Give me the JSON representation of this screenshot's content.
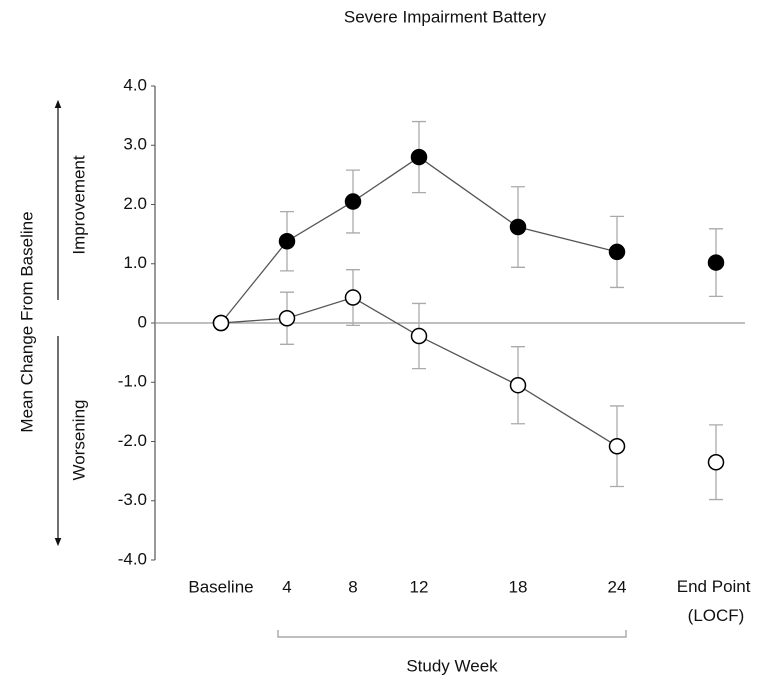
{
  "chart_data": {
    "type": "line",
    "title": "Severe Impairment Battery",
    "y_label": "Mean Change From Baseline",
    "y_label_upper": "Improvement",
    "y_label_lower": "Worsening",
    "x_label": "Study Week",
    "x": [
      0,
      4,
      8,
      12,
      18,
      24,
      30
    ],
    "xlim": [
      -4,
      32
    ],
    "xticks": [
      {
        "value": 0,
        "label": "Baseline"
      },
      4,
      8,
      12,
      18,
      24,
      {
        "value": 30,
        "label": "End Point (LOCF)"
      }
    ],
    "ylim": [
      -4,
      4
    ],
    "yticks": [
      {
        "value": 4,
        "label": "4.0"
      },
      {
        "value": 3,
        "label": "3.0"
      },
      {
        "value": 2,
        "label": "2.0"
      },
      {
        "value": 1,
        "label": "1.0"
      },
      0,
      {
        "value": -1,
        "label": "-1.0"
      },
      {
        "value": -2,
        "label": "-2.0"
      },
      {
        "value": -3,
        "label": "-3.0"
      },
      {
        "value": -4,
        "label": "-4.0"
      }
    ],
    "series": [
      {
        "color": "#000000",
        "fill": "#000000",
        "values": [
          0,
          1.38,
          2.05,
          2.8,
          1.62,
          1.2,
          1.02
        ],
        "errors": [
          null,
          0.5,
          0.53,
          0.6,
          0.68,
          0.6,
          0.57
        ]
      },
      {
        "color": "#000000",
        "fill": "#ffffff",
        "values": [
          0,
          0.08,
          0.43,
          -0.22,
          -1.05,
          -2.08,
          -2.35
        ],
        "errors": [
          null,
          0.44,
          0.47,
          0.55,
          0.65,
          0.68,
          0.63
        ]
      }
    ]
  }
}
